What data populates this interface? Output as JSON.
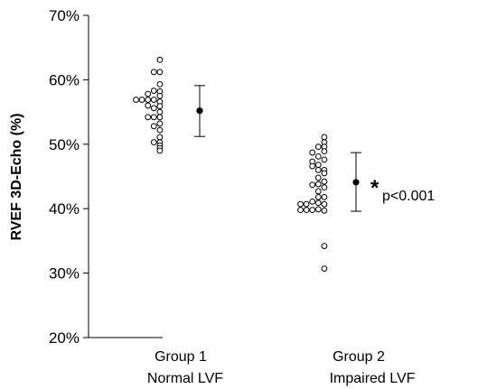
{
  "chart_data": {
    "type": "scatter",
    "ylabel": "RVEF 3D-Echo (%)",
    "ylim": [
      20,
      70
    ],
    "yticks": [
      20,
      30,
      40,
      50,
      60,
      70
    ],
    "ytick_labels": [
      "20%",
      "30%",
      "40%",
      "50%",
      "60%",
      "70%"
    ],
    "grid": false,
    "categories": [
      {
        "line1": "Group 1",
        "line2": "Normal LVF"
      },
      {
        "line1": "Group 2",
        "line2": "Impaired LVF"
      }
    ],
    "groups": [
      {
        "name": "Group 1",
        "mean": 55.2,
        "sd_low": 51.2,
        "sd_high": 59.1,
        "points": [
          {
            "y": 63.1,
            "col": 4
          },
          {
            "y": 61.2,
            "col": 3
          },
          {
            "y": 61.2,
            "col": 4
          },
          {
            "y": 59.3,
            "col": 4
          },
          {
            "y": 58.3,
            "col": 3
          },
          {
            "y": 58.2,
            "col": 4
          },
          {
            "y": 57.8,
            "col": 2
          },
          {
            "y": 57.5,
            "col": 4
          },
          {
            "y": 56.9,
            "col": 0
          },
          {
            "y": 56.9,
            "col": 1
          },
          {
            "y": 56.9,
            "col": 2
          },
          {
            "y": 56.9,
            "col": 3
          },
          {
            "y": 56.6,
            "col": 4
          },
          {
            "y": 56.0,
            "col": 2
          },
          {
            "y": 55.6,
            "col": 3
          },
          {
            "y": 55.9,
            "col": 4
          },
          {
            "y": 55.0,
            "col": 4
          },
          {
            "y": 54.2,
            "col": 2
          },
          {
            "y": 54.2,
            "col": 3
          },
          {
            "y": 54.2,
            "col": 4
          },
          {
            "y": 53.2,
            "col": 4
          },
          {
            "y": 52.8,
            "col": 3
          },
          {
            "y": 52.2,
            "col": 4
          },
          {
            "y": 51.1,
            "col": 4
          },
          {
            "y": 50.3,
            "col": 3
          },
          {
            "y": 50.3,
            "col": 4
          },
          {
            "y": 49.8,
            "col": 4
          },
          {
            "y": 49.4,
            "col": 4
          },
          {
            "y": 49.0,
            "col": 4
          }
        ]
      },
      {
        "name": "Group 2",
        "mean": 44.1,
        "sd_low": 39.6,
        "sd_high": 48.7,
        "points": [
          {
            "y": 51.1,
            "col": 4
          },
          {
            "y": 50.3,
            "col": 4
          },
          {
            "y": 49.6,
            "col": 3
          },
          {
            "y": 49.6,
            "col": 4
          },
          {
            "y": 48.7,
            "col": 2
          },
          {
            "y": 48.9,
            "col": 4
          },
          {
            "y": 48.1,
            "col": 3
          },
          {
            "y": 47.3,
            "col": 2
          },
          {
            "y": 47.6,
            "col": 4
          },
          {
            "y": 46.6,
            "col": 2
          },
          {
            "y": 46.8,
            "col": 3
          },
          {
            "y": 46.0,
            "col": 3
          },
          {
            "y": 46.0,
            "col": 4
          },
          {
            "y": 45.5,
            "col": 4
          },
          {
            "y": 44.8,
            "col": 3
          },
          {
            "y": 44.2,
            "col": 4
          },
          {
            "y": 43.7,
            "col": 2
          },
          {
            "y": 43.8,
            "col": 3
          },
          {
            "y": 43.3,
            "col": 4
          },
          {
            "y": 42.7,
            "col": 3
          },
          {
            "y": 41.8,
            "col": 3
          },
          {
            "y": 41.8,
            "col": 4
          },
          {
            "y": 41.1,
            "col": 2
          },
          {
            "y": 40.7,
            "col": 0
          },
          {
            "y": 40.7,
            "col": 1
          },
          {
            "y": 40.9,
            "col": 3
          },
          {
            "y": 40.7,
            "col": 4
          },
          {
            "y": 39.8,
            "col": 0
          },
          {
            "y": 39.8,
            "col": 1
          },
          {
            "y": 39.8,
            "col": 2
          },
          {
            "y": 39.9,
            "col": 3
          },
          {
            "y": 39.7,
            "col": 4
          },
          {
            "y": 34.2,
            "col": 4
          },
          {
            "y": 30.7,
            "col": 4
          }
        ]
      }
    ],
    "annotation": {
      "marker": "*",
      "text": "p<0.001",
      "group": 1
    }
  }
}
